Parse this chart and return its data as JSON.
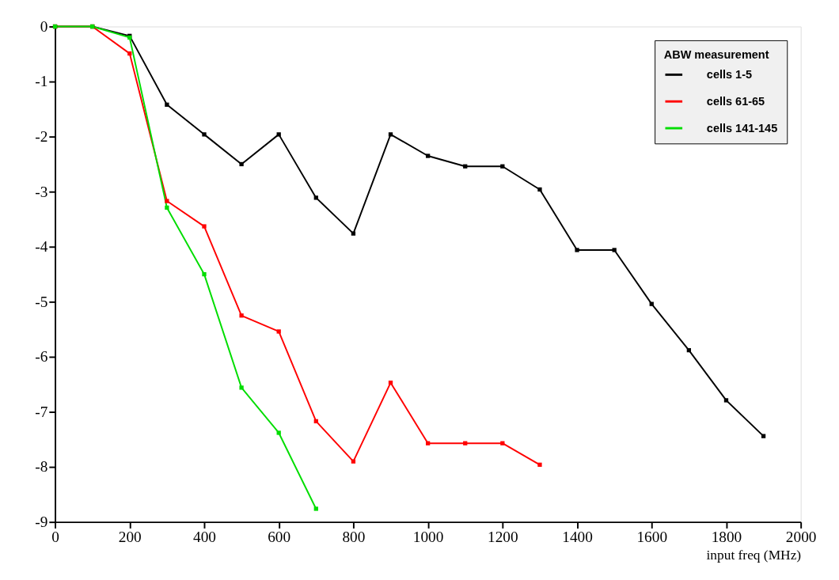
{
  "chart_data": {
    "type": "line",
    "xlabel": "input freq (MHz)",
    "legend_title": "ABW measurement",
    "legend": "top right",
    "marker": "square",
    "line_style": "solid",
    "grid": false,
    "xlim": [
      0,
      2000
    ],
    "xticks": [
      0,
      200,
      400,
      600,
      800,
      1000,
      1200,
      1400,
      1600,
      1800,
      2000
    ],
    "ylim": [
      -9,
      0
    ],
    "yticks": [
      -9,
      -8,
      -7,
      -6,
      -5,
      -4,
      -3,
      -2,
      -1,
      0
    ],
    "series": [
      {
        "name": "cells 1-5",
        "color": "#000000",
        "x": [
          0,
          100,
          200,
          300,
          400,
          500,
          600,
          700,
          800,
          900,
          1000,
          1100,
          1200,
          1300,
          1400,
          1500,
          1600,
          1700,
          1800,
          1900
        ],
        "values": [
          0,
          0,
          -0.17,
          -1.42,
          -1.96,
          -2.5,
          -1.96,
          -3.11,
          -3.76,
          -1.96,
          -2.35,
          -2.54,
          -2.54,
          -2.96,
          -4.06,
          -4.06,
          -5.04,
          -5.88,
          -6.79,
          -7.44
        ]
      },
      {
        "name": "cells 61-65",
        "color": "#ff0000",
        "x": [
          0,
          100,
          200,
          300,
          400,
          500,
          600,
          700,
          800,
          900,
          1000,
          1100,
          1200,
          1300
        ],
        "values": [
          0,
          0,
          -0.49,
          -3.17,
          -3.63,
          -5.25,
          -5.54,
          -7.17,
          -7.9,
          -6.47,
          -7.57,
          -7.57,
          -7.57,
          -7.96
        ]
      },
      {
        "name": "cells 141-145",
        "color": "#00dd00",
        "x": [
          0,
          100,
          200,
          300,
          400,
          500,
          600,
          700
        ],
        "values": [
          0,
          0,
          -0.2,
          -3.29,
          -4.5,
          -6.56,
          -7.38,
          -8.76
        ]
      }
    ]
  }
}
